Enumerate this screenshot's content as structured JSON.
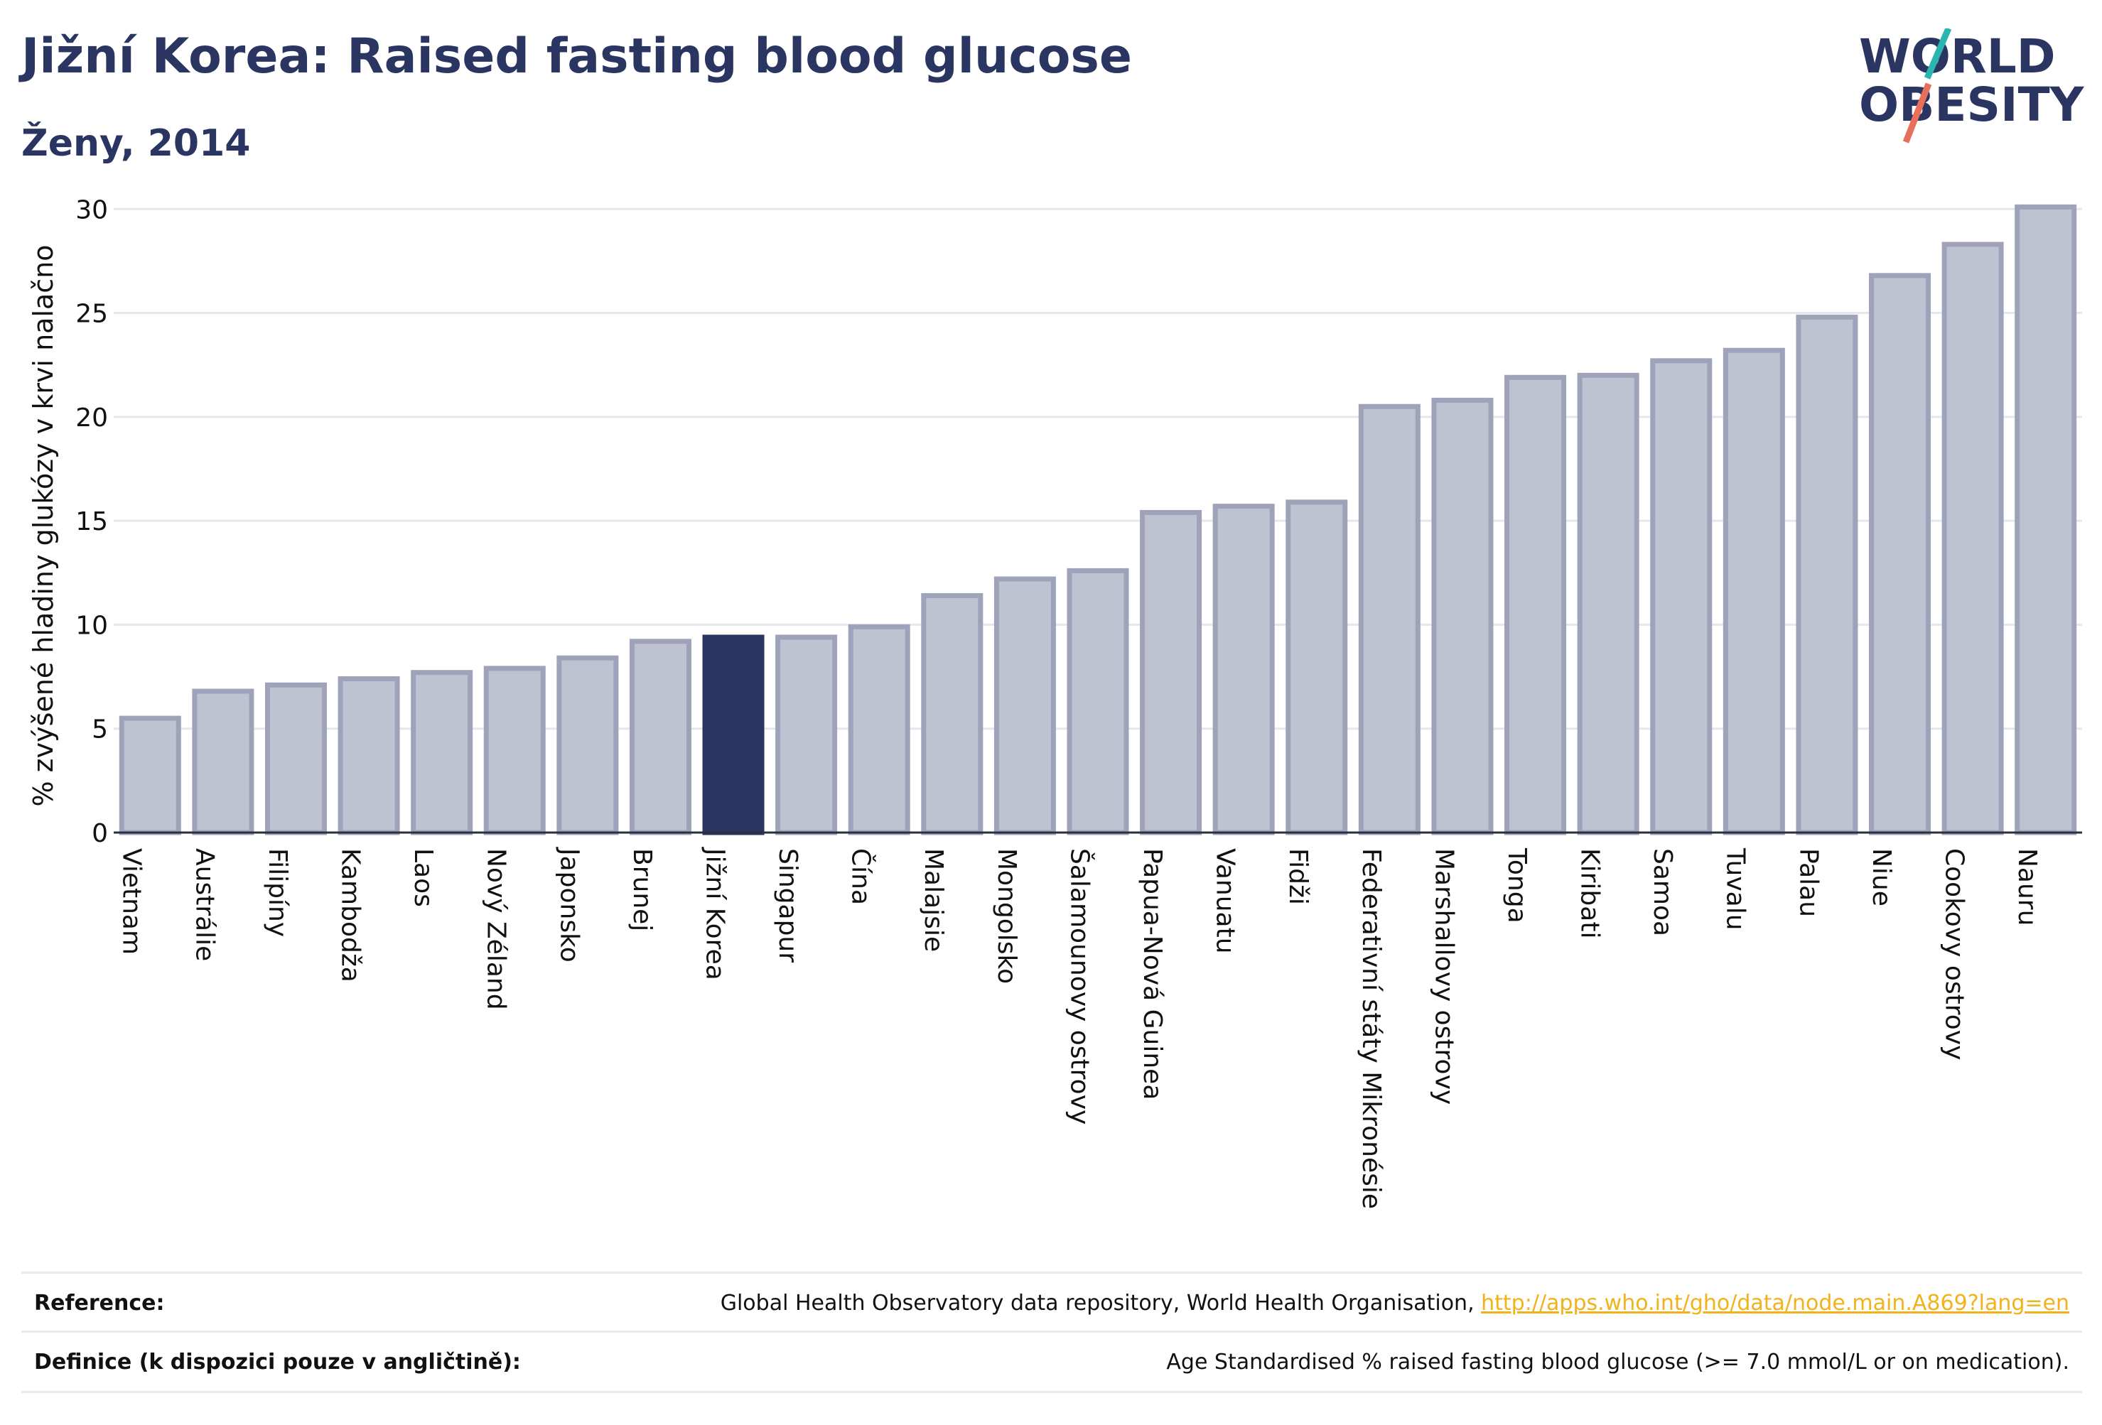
{
  "header": {
    "title": "Jižní Korea: Raised fasting blood glucose",
    "subtitle": "Ženy, 2014"
  },
  "logo": {
    "line1": "WORLD",
    "line2": "OBESITY",
    "colors": {
      "text": "#2b3562",
      "slash_teal": "#2bb5b0",
      "slash_coral": "#e8705a"
    }
  },
  "chart_data": {
    "type": "bar",
    "ylabel": "% zvýšené hladiny glukózy v krvi nalačno",
    "xlabel": "",
    "ylim": [
      0,
      31
    ],
    "yticks": [
      0,
      5,
      10,
      15,
      20,
      25,
      30
    ],
    "grid": true,
    "highlight": "Jižní Korea",
    "colors": {
      "bar": "#bfc2d0",
      "bar_border": "#9ea3ba",
      "highlight": "#2b3562"
    },
    "categories": [
      "Vietnam",
      "Austrálie",
      "Filipíny",
      "Kambodža",
      "Laos",
      "Nový Zéland",
      "Japonsko",
      "Brunej",
      "Jižní Korea",
      "Singapur",
      "Čína",
      "Malajsie",
      "Mongolsko",
      "Šalamounovy ostrovy",
      "Papua-Nová Guinea",
      "Vanuatu",
      "Fidži",
      "Federativní státy Mikronésie",
      "Marshallovy ostrovy",
      "Tonga",
      "Kiribati",
      "Samoa",
      "Tuvalu",
      "Palau",
      "Niue",
      "Cookovy ostrovy",
      "Nauru"
    ],
    "values": [
      5.5,
      6.8,
      7.1,
      7.4,
      7.7,
      7.9,
      8.4,
      9.2,
      9.4,
      9.4,
      9.9,
      11.4,
      12.2,
      12.6,
      15.4,
      15.7,
      15.9,
      20.5,
      20.8,
      21.9,
      22.0,
      22.7,
      23.2,
      24.8,
      26.8,
      28.3,
      30.1
    ]
  },
  "footer": {
    "reference_label": "Reference:",
    "reference_text": "Global Health Observatory data repository, World Health Organisation, ",
    "reference_link": "http://apps.who.int/gho/data/node.main.A869?lang=en",
    "definition_label": "Definice (k dispozici pouze v angličtině):",
    "definition_text": "Age Standardised % raised fasting blood glucose (>= 7.0 mmol/L or on medication)."
  }
}
